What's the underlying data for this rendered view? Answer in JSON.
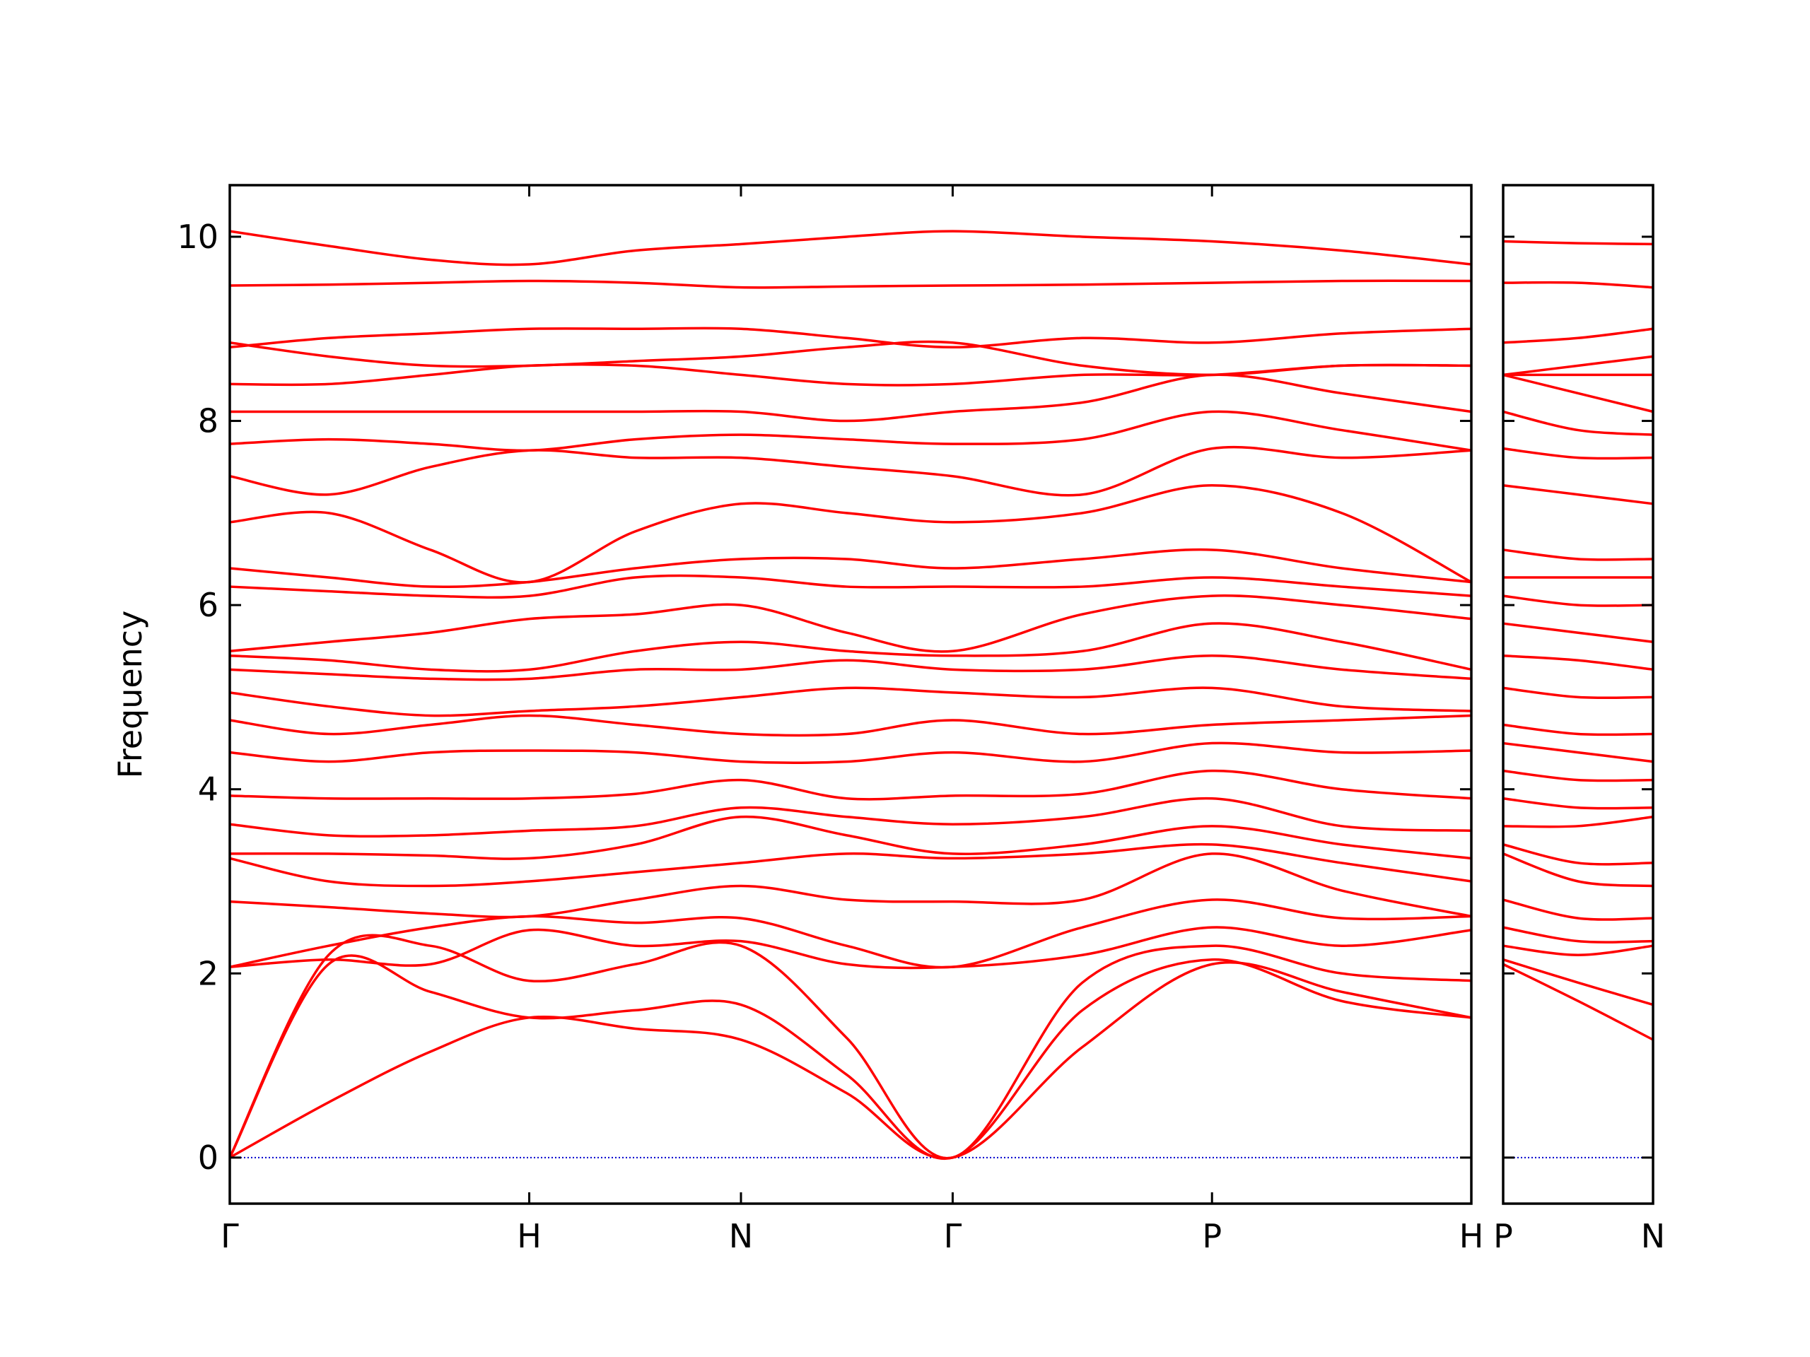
{
  "chart_data": [
    {
      "type": "line",
      "ylabel": "Frequency",
      "color": "#ff0000",
      "line_width": 3.5,
      "xlim": [
        0,
        4.146
      ],
      "ylim": [
        -0.5,
        10.56
      ],
      "xticks": [
        {
          "value": 0,
          "label": "Γ"
        },
        {
          "value": 1,
          "label": "H"
        },
        {
          "value": 1.707,
          "label": "N"
        },
        {
          "value": 2.414,
          "label": "Γ"
        },
        {
          "value": 3.28,
          "label": "P"
        },
        {
          "value": 4.146,
          "label": "H"
        }
      ],
      "yticks": [
        0,
        2,
        4,
        6,
        8,
        10
      ],
      "show_ytick_labels": true,
      "hline": {
        "y": 0,
        "color": "#0000cc"
      },
      "x": [
        0,
        0.33,
        0.67,
        1,
        1.354,
        1.707,
        2.06,
        2.414,
        2.847,
        3.28,
        3.713,
        4.146
      ],
      "series": [
        {
          "values": [
            0,
            0.6,
            1.15,
            1.52,
            1.4,
            1.28,
            0.7,
            0,
            1.2,
            2.1,
            1.8,
            1.52
          ]
        },
        {
          "values": [
            0,
            2.1,
            1.8,
            1.52,
            1.6,
            1.66,
            0.9,
            0,
            1.6,
            2.15,
            1.7,
            1.52
          ]
        },
        {
          "values": [
            0,
            2.2,
            2.3,
            1.92,
            2.1,
            2.3,
            1.3,
            0,
            1.9,
            2.3,
            2.0,
            1.92
          ]
        },
        {
          "values": [
            2.07,
            2.15,
            2.1,
            2.47,
            2.3,
            2.35,
            2.1,
            2.07,
            2.2,
            2.5,
            2.3,
            2.47
          ]
        },
        {
          "values": [
            2.07,
            2.3,
            2.5,
            2.62,
            2.55,
            2.6,
            2.3,
            2.07,
            2.5,
            2.8,
            2.6,
            2.62
          ]
        },
        {
          "values": [
            2.78,
            2.72,
            2.65,
            2.62,
            2.8,
            2.95,
            2.8,
            2.78,
            2.8,
            3.3,
            2.9,
            2.62
          ]
        },
        {
          "values": [
            3.25,
            3.0,
            2.95,
            3.0,
            3.1,
            3.2,
            3.3,
            3.25,
            3.3,
            3.4,
            3.2,
            3.0
          ]
        },
        {
          "values": [
            3.3,
            3.3,
            3.28,
            3.25,
            3.4,
            3.7,
            3.5,
            3.3,
            3.4,
            3.6,
            3.4,
            3.25
          ]
        },
        {
          "values": [
            3.62,
            3.5,
            3.5,
            3.55,
            3.6,
            3.8,
            3.7,
            3.62,
            3.7,
            3.9,
            3.6,
            3.55
          ]
        },
        {
          "values": [
            3.93,
            3.9,
            3.9,
            3.9,
            3.95,
            4.1,
            3.9,
            3.93,
            3.95,
            4.2,
            4.0,
            3.9
          ]
        },
        {
          "values": [
            4.4,
            4.3,
            4.4,
            4.42,
            4.4,
            4.3,
            4.3,
            4.4,
            4.3,
            4.5,
            4.4,
            4.42
          ]
        },
        {
          "values": [
            4.75,
            4.6,
            4.7,
            4.8,
            4.7,
            4.6,
            4.6,
            4.75,
            4.6,
            4.7,
            4.75,
            4.8
          ]
        },
        {
          "values": [
            5.05,
            4.9,
            4.8,
            4.85,
            4.9,
            5.0,
            5.1,
            5.05,
            5.0,
            5.1,
            4.9,
            4.85
          ]
        },
        {
          "values": [
            5.3,
            5.25,
            5.2,
            5.2,
            5.3,
            5.3,
            5.4,
            5.3,
            5.3,
            5.45,
            5.3,
            5.2
          ]
        },
        {
          "values": [
            5.45,
            5.4,
            5.3,
            5.3,
            5.5,
            5.6,
            5.5,
            5.45,
            5.5,
            5.8,
            5.6,
            5.3
          ]
        },
        {
          "values": [
            5.5,
            5.6,
            5.7,
            5.85,
            5.9,
            6.0,
            5.7,
            5.5,
            5.9,
            6.1,
            6.0,
            5.85
          ]
        },
        {
          "values": [
            6.2,
            6.15,
            6.1,
            6.1,
            6.3,
            6.3,
            6.2,
            6.2,
            6.2,
            6.3,
            6.2,
            6.1
          ]
        },
        {
          "values": [
            6.4,
            6.3,
            6.2,
            6.25,
            6.4,
            6.5,
            6.5,
            6.4,
            6.5,
            6.6,
            6.4,
            6.25
          ]
        },
        {
          "values": [
            6.9,
            7.0,
            6.6,
            6.25,
            6.8,
            7.1,
            7.0,
            6.9,
            7.0,
            7.3,
            7.0,
            6.25
          ]
        },
        {
          "values": [
            7.4,
            7.2,
            7.5,
            7.68,
            7.6,
            7.6,
            7.5,
            7.4,
            7.2,
            7.7,
            7.6,
            7.68
          ]
        },
        {
          "values": [
            7.75,
            7.8,
            7.75,
            7.68,
            7.8,
            7.85,
            7.8,
            7.75,
            7.8,
            8.1,
            7.9,
            7.68
          ]
        },
        {
          "values": [
            8.1,
            8.1,
            8.1,
            8.1,
            8.1,
            8.1,
            8.0,
            8.1,
            8.2,
            8.5,
            8.3,
            8.1
          ]
        },
        {
          "values": [
            8.4,
            8.4,
            8.5,
            8.6,
            8.6,
            8.5,
            8.4,
            8.4,
            8.5,
            8.5,
            8.6,
            8.6
          ]
        },
        {
          "values": [
            8.85,
            8.7,
            8.6,
            8.6,
            8.65,
            8.7,
            8.8,
            8.85,
            8.6,
            8.5,
            8.6,
            8.6
          ]
        },
        {
          "values": [
            8.8,
            8.9,
            8.95,
            9.0,
            9.0,
            9.0,
            8.9,
            8.8,
            8.9,
            8.85,
            8.95,
            9.0
          ]
        },
        {
          "values": [
            9.47,
            9.48,
            9.5,
            9.52,
            9.5,
            9.45,
            9.46,
            9.47,
            9.48,
            9.5,
            9.52,
            9.52
          ]
        },
        {
          "values": [
            10.06,
            9.9,
            9.75,
            9.7,
            9.85,
            9.92,
            10.0,
            10.06,
            10.0,
            9.95,
            9.85,
            9.7
          ]
        }
      ]
    },
    {
      "type": "line",
      "color": "#ff0000",
      "line_width": 3.5,
      "xlim": [
        4.146,
        4.646
      ],
      "ylim": [
        -0.5,
        10.56
      ],
      "xticks": [
        {
          "value": 4.146,
          "label": "P"
        },
        {
          "value": 4.646,
          "label": "N"
        }
      ],
      "yticks": [
        0,
        2,
        4,
        6,
        8,
        10
      ],
      "show_ytick_labels": false,
      "hline": {
        "y": 0,
        "color": "#0000cc"
      },
      "x": [
        4.146,
        4.396,
        4.646
      ],
      "series": [
        {
          "values": [
            2.1,
            1.7,
            1.28
          ]
        },
        {
          "values": [
            2.15,
            1.9,
            1.66
          ]
        },
        {
          "values": [
            2.3,
            2.2,
            2.3
          ]
        },
        {
          "values": [
            2.5,
            2.35,
            2.35
          ]
        },
        {
          "values": [
            2.8,
            2.6,
            2.6
          ]
        },
        {
          "values": [
            3.3,
            3.0,
            2.95
          ]
        },
        {
          "values": [
            3.4,
            3.2,
            3.2
          ]
        },
        {
          "values": [
            3.6,
            3.6,
            3.7
          ]
        },
        {
          "values": [
            3.9,
            3.8,
            3.8
          ]
        },
        {
          "values": [
            4.2,
            4.1,
            4.1
          ]
        },
        {
          "values": [
            4.5,
            4.4,
            4.3
          ]
        },
        {
          "values": [
            4.7,
            4.6,
            4.6
          ]
        },
        {
          "values": [
            5.1,
            5.0,
            5.0
          ]
        },
        {
          "values": [
            5.45,
            5.4,
            5.3
          ]
        },
        {
          "values": [
            5.8,
            5.7,
            5.6
          ]
        },
        {
          "values": [
            6.1,
            6.0,
            6.0
          ]
        },
        {
          "values": [
            6.3,
            6.3,
            6.3
          ]
        },
        {
          "values": [
            6.6,
            6.5,
            6.5
          ]
        },
        {
          "values": [
            7.3,
            7.2,
            7.1
          ]
        },
        {
          "values": [
            7.7,
            7.6,
            7.6
          ]
        },
        {
          "values": [
            8.1,
            7.9,
            7.85
          ]
        },
        {
          "values": [
            8.5,
            8.3,
            8.1
          ]
        },
        {
          "values": [
            8.5,
            8.5,
            8.5
          ]
        },
        {
          "values": [
            8.5,
            8.6,
            8.7
          ]
        },
        {
          "values": [
            8.85,
            8.9,
            9.0
          ]
        },
        {
          "values": [
            9.5,
            9.5,
            9.45
          ]
        },
        {
          "values": [
            9.95,
            9.93,
            9.92
          ]
        }
      ]
    }
  ]
}
